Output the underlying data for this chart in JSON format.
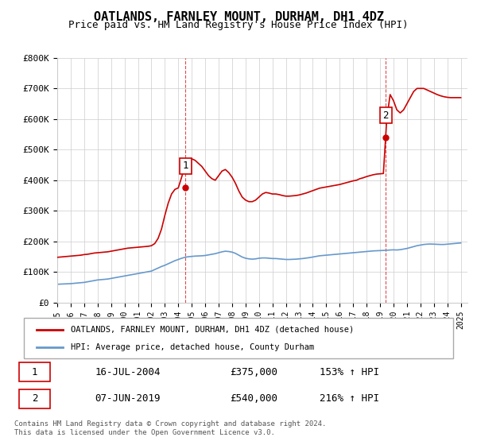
{
  "title": "OATLANDS, FARNLEY MOUNT, DURHAM, DH1 4DZ",
  "subtitle": "Price paid vs. HM Land Registry's House Price Index (HPI)",
  "background_color": "#ffffff",
  "plot_bg_color": "#ffffff",
  "grid_color": "#cccccc",
  "xlabel": "",
  "ylabel": "",
  "ylim": [
    0,
    800000
  ],
  "xlim_start": 1995.0,
  "xlim_end": 2025.5,
  "yticks": [
    0,
    100000,
    200000,
    300000,
    400000,
    500000,
    600000,
    700000,
    800000
  ],
  "ytick_labels": [
    "£0",
    "£100K",
    "£200K",
    "£300K",
    "£400K",
    "£500K",
    "£600K",
    "£700K",
    "£800K"
  ],
  "xticks": [
    1995,
    1996,
    1997,
    1998,
    1999,
    2000,
    2001,
    2002,
    2003,
    2004,
    2005,
    2006,
    2007,
    2008,
    2009,
    2010,
    2011,
    2012,
    2013,
    2014,
    2015,
    2016,
    2017,
    2018,
    2019,
    2020,
    2021,
    2022,
    2023,
    2024,
    2025
  ],
  "red_line_color": "#cc0000",
  "blue_line_color": "#6699cc",
  "sale1_x": 2004.54,
  "sale1_y": 375000,
  "sale1_label": "1",
  "sale1_date": "16-JUL-2004",
  "sale1_price": "£375,000",
  "sale1_hpi": "153% ↑ HPI",
  "sale2_x": 2019.43,
  "sale2_y": 540000,
  "sale2_label": "2",
  "sale2_date": "07-JUN-2019",
  "sale2_price": "£540,000",
  "sale2_hpi": "216% ↑ HPI",
  "legend1": "OATLANDS, FARNLEY MOUNT, DURHAM, DH1 4DZ (detached house)",
  "legend2": "HPI: Average price, detached house, County Durham",
  "footer": "Contains HM Land Registry data © Crown copyright and database right 2024.\nThis data is licensed under the Open Government Licence v3.0.",
  "hpi_data": {
    "x": [
      1995.0,
      1995.25,
      1995.5,
      1995.75,
      1996.0,
      1996.25,
      1996.5,
      1996.75,
      1997.0,
      1997.25,
      1997.5,
      1997.75,
      1998.0,
      1998.25,
      1998.5,
      1998.75,
      1999.0,
      1999.25,
      1999.5,
      1999.75,
      2000.0,
      2000.25,
      2000.5,
      2000.75,
      2001.0,
      2001.25,
      2001.5,
      2001.75,
      2002.0,
      2002.25,
      2002.5,
      2002.75,
      2003.0,
      2003.25,
      2003.5,
      2003.75,
      2004.0,
      2004.25,
      2004.5,
      2004.75,
      2005.0,
      2005.25,
      2005.5,
      2005.75,
      2006.0,
      2006.25,
      2006.5,
      2006.75,
      2007.0,
      2007.25,
      2007.5,
      2007.75,
      2008.0,
      2008.25,
      2008.5,
      2008.75,
      2009.0,
      2009.25,
      2009.5,
      2009.75,
      2010.0,
      2010.25,
      2010.5,
      2010.75,
      2011.0,
      2011.25,
      2011.5,
      2011.75,
      2012.0,
      2012.25,
      2012.5,
      2012.75,
      2013.0,
      2013.25,
      2013.5,
      2013.75,
      2014.0,
      2014.25,
      2014.5,
      2014.75,
      2015.0,
      2015.25,
      2015.5,
      2015.75,
      2016.0,
      2016.25,
      2016.5,
      2016.75,
      2017.0,
      2017.25,
      2017.5,
      2017.75,
      2018.0,
      2018.25,
      2018.5,
      2018.75,
      2019.0,
      2019.25,
      2019.5,
      2019.75,
      2020.0,
      2020.25,
      2020.5,
      2020.75,
      2021.0,
      2021.25,
      2021.5,
      2021.75,
      2022.0,
      2022.25,
      2022.5,
      2022.75,
      2023.0,
      2023.25,
      2023.5,
      2023.75,
      2024.0,
      2024.25,
      2024.5,
      2024.75,
      2025.0
    ],
    "y": [
      60000,
      60500,
      61000,
      61500,
      62000,
      63000,
      64000,
      65000,
      66000,
      68000,
      70000,
      72000,
      74000,
      75000,
      76000,
      77000,
      79000,
      81000,
      83000,
      85000,
      87000,
      89000,
      91000,
      93000,
      95000,
      97000,
      99000,
      101000,
      103000,
      108000,
      113000,
      118000,
      122000,
      127000,
      132000,
      137000,
      141000,
      145000,
      148000,
      150000,
      151000,
      152000,
      152500,
      153000,
      154000,
      156000,
      158000,
      160000,
      163000,
      166000,
      168000,
      167000,
      165000,
      161000,
      155000,
      149000,
      145000,
      143000,
      142000,
      143000,
      145000,
      146000,
      146000,
      145000,
      144000,
      144000,
      143000,
      142000,
      141000,
      141000,
      141500,
      142000,
      143000,
      144000,
      145500,
      147000,
      149000,
      151000,
      153000,
      154000,
      155000,
      156000,
      157000,
      158000,
      159000,
      160000,
      161000,
      162000,
      163000,
      164000,
      165000,
      166000,
      167000,
      168000,
      169000,
      169500,
      170000,
      170500,
      171000,
      172000,
      172500,
      172000,
      173000,
      175000,
      177000,
      180000,
      183000,
      186000,
      188000,
      190000,
      191000,
      191500,
      191000,
      190500,
      190000,
      190000,
      191000,
      192000,
      193000,
      194000,
      195000
    ]
  },
  "property_data": {
    "x": [
      1995.0,
      1995.25,
      1995.5,
      1995.75,
      1996.0,
      1996.25,
      1996.5,
      1996.75,
      1997.0,
      1997.25,
      1997.5,
      1997.75,
      1998.0,
      1998.25,
      1998.5,
      1998.75,
      1999.0,
      1999.25,
      1999.5,
      1999.75,
      2000.0,
      2000.25,
      2000.5,
      2000.75,
      2001.0,
      2001.25,
      2001.5,
      2001.75,
      2002.0,
      2002.25,
      2002.5,
      2002.75,
      2003.0,
      2003.25,
      2003.5,
      2003.75,
      2004.0,
      2004.25,
      2004.5,
      2004.75,
      2005.0,
      2005.25,
      2005.5,
      2005.75,
      2006.0,
      2006.25,
      2006.5,
      2006.75,
      2007.0,
      2007.25,
      2007.5,
      2007.75,
      2008.0,
      2008.25,
      2008.5,
      2008.75,
      2009.0,
      2009.25,
      2009.5,
      2009.75,
      2010.0,
      2010.25,
      2010.5,
      2010.75,
      2011.0,
      2011.25,
      2011.5,
      2011.75,
      2012.0,
      2012.25,
      2012.5,
      2012.75,
      2013.0,
      2013.25,
      2013.5,
      2013.75,
      2014.0,
      2014.25,
      2014.5,
      2014.75,
      2015.0,
      2015.25,
      2015.5,
      2015.75,
      2016.0,
      2016.25,
      2016.5,
      2016.75,
      2017.0,
      2017.25,
      2017.5,
      2017.75,
      2018.0,
      2018.25,
      2018.5,
      2018.75,
      2019.0,
      2019.25,
      2019.5,
      2019.75,
      2020.0,
      2020.25,
      2020.5,
      2020.75,
      2021.0,
      2021.25,
      2021.5,
      2021.75,
      2022.0,
      2022.25,
      2022.5,
      2022.75,
      2023.0,
      2023.25,
      2023.5,
      2023.75,
      2024.0,
      2024.25,
      2024.5,
      2024.75,
      2025.0
    ],
    "y": [
      148000,
      149000,
      150000,
      151000,
      152000,
      153000,
      154000,
      155000,
      157000,
      158000,
      160000,
      162000,
      163000,
      164000,
      165000,
      166000,
      168000,
      170000,
      172000,
      174000,
      176000,
      178000,
      179000,
      180000,
      181000,
      182000,
      183000,
      184000,
      186000,
      193000,
      210000,
      240000,
      285000,
      325000,
      355000,
      370000,
      375000,
      410000,
      450000,
      460000,
      470000,
      465000,
      455000,
      445000,
      430000,
      415000,
      405000,
      400000,
      415000,
      430000,
      435000,
      425000,
      410000,
      390000,
      365000,
      345000,
      335000,
      330000,
      330000,
      335000,
      345000,
      355000,
      360000,
      358000,
      355000,
      355000,
      353000,
      350000,
      348000,
      348000,
      349000,
      350000,
      352000,
      355000,
      358000,
      362000,
      366000,
      370000,
      374000,
      376000,
      378000,
      380000,
      382000,
      384000,
      386000,
      389000,
      392000,
      395000,
      398000,
      400000,
      405000,
      408000,
      412000,
      415000,
      418000,
      420000,
      421000,
      422000,
      600000,
      680000,
      660000,
      630000,
      620000,
      630000,
      650000,
      670000,
      690000,
      700000,
      700000,
      700000,
      695000,
      690000,
      685000,
      680000,
      676000,
      673000,
      671000,
      670000,
      670000,
      670000,
      670000
    ]
  }
}
